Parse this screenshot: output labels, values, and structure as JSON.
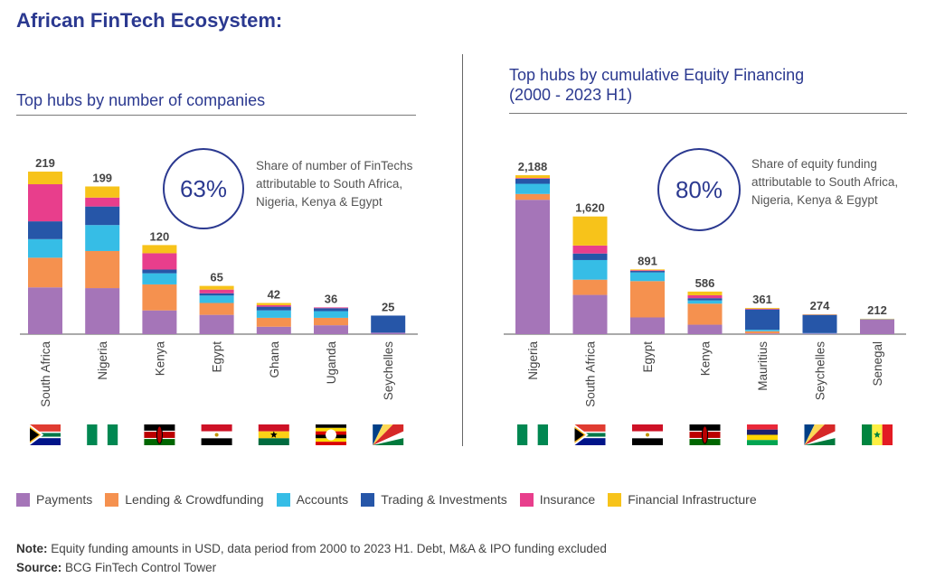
{
  "page_title": "African FinTech Ecosystem:",
  "colors": {
    "payments": "#a575b8",
    "lending": "#f5914f",
    "accounts": "#36bde6",
    "trading": "#2656a8",
    "insurance": "#e83e8c",
    "infrastructure": "#f7c31a",
    "accent": "#2b3990"
  },
  "legend": [
    {
      "key": "payments",
      "label": "Payments"
    },
    {
      "key": "lending",
      "label": "Lending & Crowdfunding"
    },
    {
      "key": "accounts",
      "label": "Accounts"
    },
    {
      "key": "trading",
      "label": "Trading & Investments"
    },
    {
      "key": "insurance",
      "label": "Insurance"
    },
    {
      "key": "infrastructure",
      "label": "Financial Infrastructure"
    }
  ],
  "left_panel": {
    "subtitle": "Top hubs by number of companies",
    "share_value": "63%",
    "share_text": "Share of number of FinTechs attributable to South Africa, Nigeria, Kenya & Egypt"
  },
  "right_panel": {
    "subtitle_line1": "Top hubs by cumulative Equity Financing",
    "subtitle_line2": "(2000 - 2023 H1)",
    "share_value": "80%",
    "share_text": "Share of equity funding attributable to South Africa, Nigeria, Kenya & Egypt"
  },
  "note_label": "Note:",
  "note_text": "Equity funding amounts in USD, data period from 2000 to 2023 H1. Debt, M&A & IPO funding excluded",
  "source_label": "Source:",
  "source_text": "BCG FinTech Control Tower",
  "chart_data": [
    {
      "type": "bar",
      "stacked": true,
      "title": "Top hubs by number of companies",
      "categories": [
        "South Africa",
        "Nigeria",
        "Kenya",
        "Egypt",
        "Ghana",
        "Uganda",
        "Seychelles"
      ],
      "totals": [
        219,
        199,
        120,
        65,
        42,
        36,
        25
      ],
      "total_labels": [
        "219",
        "199",
        "120",
        "65",
        "42",
        "36",
        "25"
      ],
      "flags": [
        "south-africa",
        "nigeria",
        "kenya",
        "egypt",
        "ghana",
        "uganda",
        "seychelles"
      ],
      "series": [
        {
          "name": "Payments",
          "key": "payments",
          "values": [
            63,
            62,
            32,
            26,
            10,
            12,
            2
          ]
        },
        {
          "name": "Lending & Crowdfunding",
          "key": "lending",
          "values": [
            40,
            50,
            35,
            16,
            12,
            10,
            0
          ]
        },
        {
          "name": "Accounts",
          "key": "accounts",
          "values": [
            25,
            35,
            15,
            10,
            10,
            9,
            0
          ]
        },
        {
          "name": "Trading & Investments",
          "key": "trading",
          "values": [
            24,
            25,
            5,
            3,
            5,
            4,
            23
          ]
        },
        {
          "name": "Insurance",
          "key": "insurance",
          "values": [
            50,
            12,
            22,
            5,
            2,
            1,
            0
          ]
        },
        {
          "name": "Financial Infrastructure",
          "key": "infrastructure",
          "values": [
            17,
            15,
            11,
            5,
            3,
            0,
            0
          ]
        }
      ],
      "ylim": [
        0,
        230
      ]
    },
    {
      "type": "bar",
      "stacked": true,
      "title": "Top hubs by cumulative Equity Financing (2000 - 2023 H1)",
      "categories": [
        "Nigeria",
        "South Africa",
        "Egypt",
        "Kenya",
        "Mauritius",
        "Seychelles",
        "Senegal"
      ],
      "totals": [
        2188,
        1620,
        891,
        586,
        361,
        274,
        212
      ],
      "total_labels": [
        "2,188",
        "1,620",
        "891",
        "586",
        "361",
        "274",
        "212"
      ],
      "flags": [
        "nigeria",
        "south-africa",
        "egypt",
        "kenya",
        "mauritius",
        "seychelles",
        "senegal"
      ],
      "series": [
        {
          "name": "Payments",
          "key": "payments",
          "values": [
            1850,
            540,
            230,
            130,
            10,
            10,
            200
          ]
        },
        {
          "name": "Lending & Crowdfunding",
          "key": "lending",
          "values": [
            80,
            210,
            500,
            290,
            30,
            0,
            5
          ]
        },
        {
          "name": "Accounts",
          "key": "accounts",
          "values": [
            140,
            270,
            120,
            45,
            20,
            5,
            5
          ]
        },
        {
          "name": "Trading & Investments",
          "key": "trading",
          "values": [
            70,
            90,
            20,
            30,
            280,
            250,
            0
          ]
        },
        {
          "name": "Insurance",
          "key": "insurance",
          "values": [
            10,
            110,
            10,
            40,
            10,
            4,
            0
          ]
        },
        {
          "name": "Financial Infrastructure",
          "key": "infrastructure",
          "values": [
            38,
            400,
            11,
            51,
            11,
            5,
            2
          ]
        }
      ],
      "ylim": [
        0,
        2350
      ]
    }
  ]
}
